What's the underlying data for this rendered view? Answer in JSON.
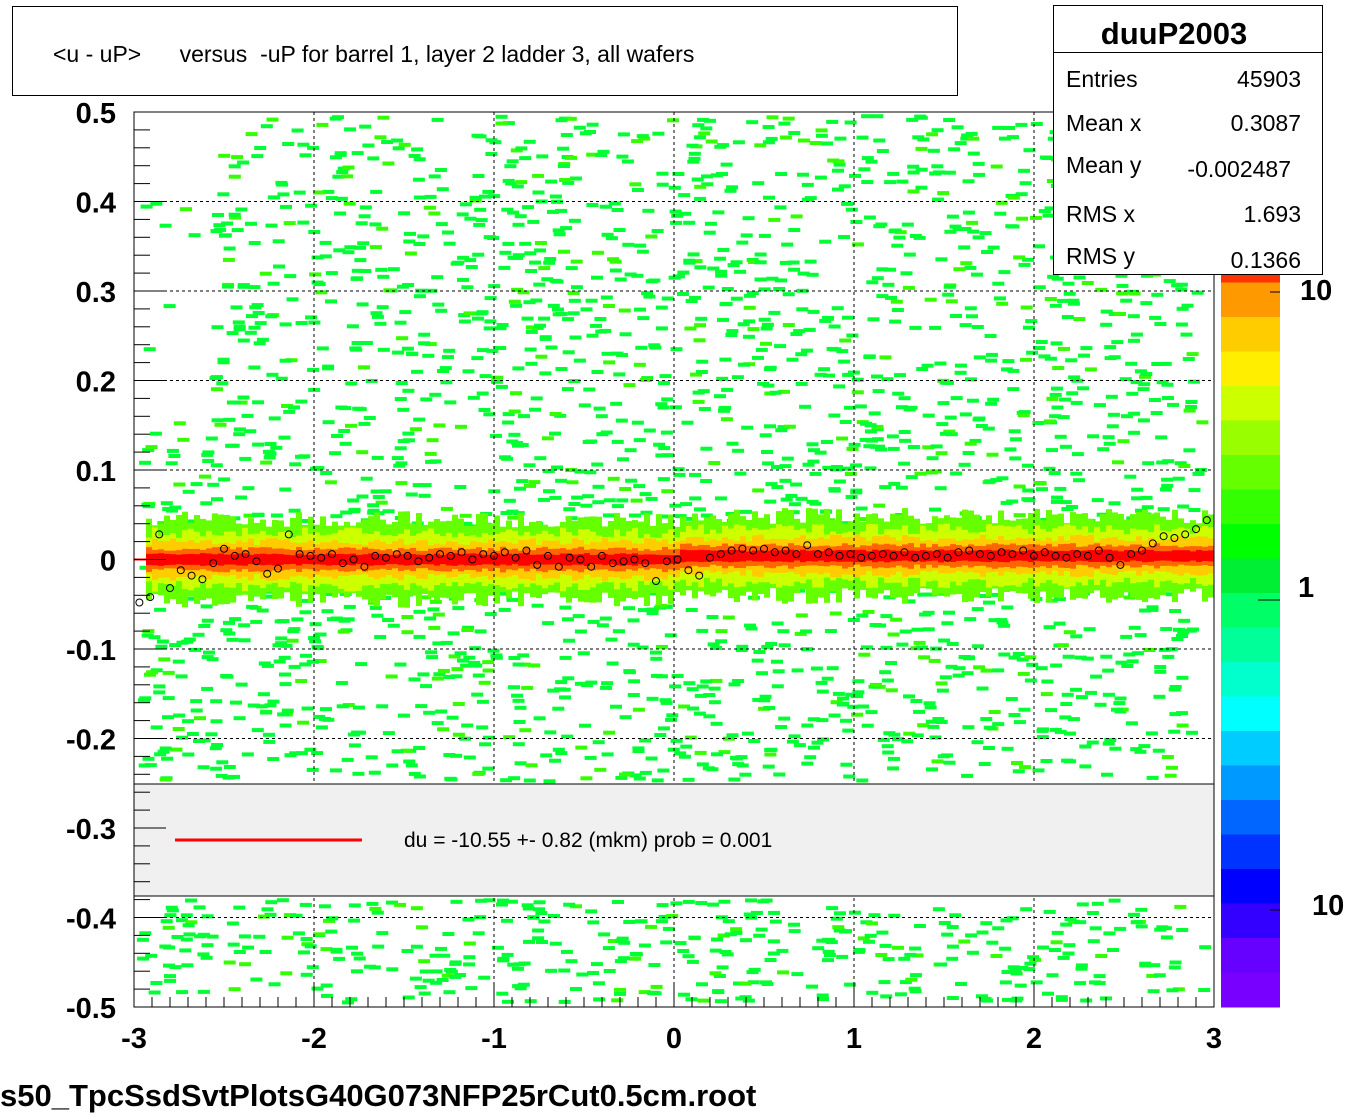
{
  "title": "<u - uP>      versus  -uP for barrel 1, layer 2 ladder 3, all wafers",
  "stats": {
    "name": "duuP2003",
    "rows": [
      {
        "label": "Entries",
        "value": "45903"
      },
      {
        "label": "Mean x",
        "value": "0.3087"
      },
      {
        "label": "Mean y",
        "value": "-0.002487"
      },
      {
        "label": "RMS x",
        "value": "1.693"
      },
      {
        "label": "RMS y",
        "value": "0.1366"
      }
    ]
  },
  "legend": {
    "text": "du =  -10.55 +-  0.82 (mkm) prob = 0.001",
    "line_color": "#ff0000"
  },
  "footer": "s50_TpcSsdSvtPlotsG40G073NFP25rCut0.5cm.root",
  "colors": {
    "background_fill": "#00ff33",
    "core_band": "#ff0000",
    "grid": "#000000",
    "legend_bg": "#f0f0f0"
  },
  "palette_labels": [
    "10",
    "1",
    "10"
  ],
  "chart_data": {
    "type": "heatmap",
    "xlim": [
      -3,
      3
    ],
    "ylim": [
      -0.5,
      0.5
    ],
    "x_ticks": [
      -3,
      -2,
      -1,
      0,
      1,
      2,
      3
    ],
    "x_tick_labels": [
      "-3",
      "-2",
      "-1",
      "0",
      "1",
      "2",
      "3"
    ],
    "y_ticks": [
      -0.5,
      -0.4,
      -0.3,
      -0.2,
      -0.1,
      0,
      0.1,
      0.2,
      0.3,
      0.4,
      0.5
    ],
    "y_tick_labels": [
      "-0.5",
      "-0.4",
      "-0.3",
      "-0.2",
      "-0.1",
      "0",
      "0.1",
      "0.2",
      "0.3",
      "0.4",
      "0.5"
    ],
    "grid": true,
    "log_z": true,
    "profile_points": [
      {
        "x": -2.97,
        "y": -0.048
      },
      {
        "x": -2.91,
        "y": -0.042
      },
      {
        "x": -2.86,
        "y": 0.028
      },
      {
        "x": -2.8,
        "y": -0.032
      },
      {
        "x": -2.74,
        "y": -0.012
      },
      {
        "x": -2.68,
        "y": -0.018
      },
      {
        "x": -2.62,
        "y": -0.022
      },
      {
        "x": -2.56,
        "y": -0.004
      },
      {
        "x": -2.5,
        "y": 0.012
      },
      {
        "x": -2.44,
        "y": 0.004
      },
      {
        "x": -2.38,
        "y": 0.006
      },
      {
        "x": -2.32,
        "y": -0.002
      },
      {
        "x": -2.26,
        "y": -0.016
      },
      {
        "x": -2.2,
        "y": -0.01
      },
      {
        "x": -2.14,
        "y": 0.028
      },
      {
        "x": -2.08,
        "y": 0.006
      },
      {
        "x": -2.02,
        "y": 0.004
      },
      {
        "x": -1.96,
        "y": 0.002
      },
      {
        "x": -1.9,
        "y": 0.006
      },
      {
        "x": -1.84,
        "y": -0.004
      },
      {
        "x": -1.78,
        "y": 0.0
      },
      {
        "x": -1.72,
        "y": -0.008
      },
      {
        "x": -1.66,
        "y": 0.004
      },
      {
        "x": -1.6,
        "y": 0.002
      },
      {
        "x": -1.54,
        "y": 0.006
      },
      {
        "x": -1.48,
        "y": 0.004
      },
      {
        "x": -1.42,
        "y": -0.002
      },
      {
        "x": -1.36,
        "y": 0.002
      },
      {
        "x": -1.3,
        "y": 0.006
      },
      {
        "x": -1.24,
        "y": 0.004
      },
      {
        "x": -1.18,
        "y": 0.008
      },
      {
        "x": -1.12,
        "y": 0.0
      },
      {
        "x": -1.06,
        "y": 0.006
      },
      {
        "x": -1.0,
        "y": 0.004
      },
      {
        "x": -0.94,
        "y": 0.008
      },
      {
        "x": -0.88,
        "y": 0.002
      },
      {
        "x": -0.82,
        "y": 0.01
      },
      {
        "x": -0.76,
        "y": -0.006
      },
      {
        "x": -0.7,
        "y": 0.004
      },
      {
        "x": -0.64,
        "y": -0.008
      },
      {
        "x": -0.58,
        "y": 0.002
      },
      {
        "x": -0.52,
        "y": 0.0
      },
      {
        "x": -0.46,
        "y": -0.008
      },
      {
        "x": -0.4,
        "y": 0.004
      },
      {
        "x": -0.34,
        "y": -0.004
      },
      {
        "x": -0.28,
        "y": -0.002
      },
      {
        "x": -0.22,
        "y": 0.0
      },
      {
        "x": -0.16,
        "y": -0.004
      },
      {
        "x": -0.1,
        "y": -0.024
      },
      {
        "x": -0.04,
        "y": -0.002
      },
      {
        "x": 0.02,
        "y": 0.0
      },
      {
        "x": 0.08,
        "y": -0.012
      },
      {
        "x": 0.14,
        "y": -0.018
      },
      {
        "x": 0.2,
        "y": 0.002
      },
      {
        "x": 0.26,
        "y": 0.006
      },
      {
        "x": 0.32,
        "y": 0.01
      },
      {
        "x": 0.38,
        "y": 0.012
      },
      {
        "x": 0.44,
        "y": 0.01
      },
      {
        "x": 0.5,
        "y": 0.012
      },
      {
        "x": 0.56,
        "y": 0.008
      },
      {
        "x": 0.62,
        "y": 0.01
      },
      {
        "x": 0.68,
        "y": 0.006
      },
      {
        "x": 0.74,
        "y": 0.016
      },
      {
        "x": 0.8,
        "y": 0.006
      },
      {
        "x": 0.86,
        "y": 0.008
      },
      {
        "x": 0.92,
        "y": 0.004
      },
      {
        "x": 0.98,
        "y": 0.006
      },
      {
        "x": 1.04,
        "y": 0.002
      },
      {
        "x": 1.1,
        "y": 0.004
      },
      {
        "x": 1.16,
        "y": 0.006
      },
      {
        "x": 1.22,
        "y": 0.004
      },
      {
        "x": 1.28,
        "y": 0.008
      },
      {
        "x": 1.34,
        "y": 0.002
      },
      {
        "x": 1.4,
        "y": 0.004
      },
      {
        "x": 1.46,
        "y": 0.006
      },
      {
        "x": 1.52,
        "y": 0.002
      },
      {
        "x": 1.58,
        "y": 0.008
      },
      {
        "x": 1.64,
        "y": 0.01
      },
      {
        "x": 1.7,
        "y": 0.006
      },
      {
        "x": 1.76,
        "y": 0.004
      },
      {
        "x": 1.82,
        "y": 0.008
      },
      {
        "x": 1.88,
        "y": 0.006
      },
      {
        "x": 1.94,
        "y": 0.01
      },
      {
        "x": 2.0,
        "y": 0.004
      },
      {
        "x": 2.06,
        "y": 0.008
      },
      {
        "x": 2.12,
        "y": 0.004
      },
      {
        "x": 2.18,
        "y": 0.002
      },
      {
        "x": 2.24,
        "y": 0.006
      },
      {
        "x": 2.3,
        "y": 0.004
      },
      {
        "x": 2.36,
        "y": 0.01
      },
      {
        "x": 2.42,
        "y": 0.002
      },
      {
        "x": 2.48,
        "y": -0.006
      },
      {
        "x": 2.54,
        "y": 0.006
      },
      {
        "x": 2.6,
        "y": 0.01
      },
      {
        "x": 2.66,
        "y": 0.018
      },
      {
        "x": 2.72,
        "y": 0.026
      },
      {
        "x": 2.78,
        "y": 0.024
      },
      {
        "x": 2.84,
        "y": 0.028
      },
      {
        "x": 2.9,
        "y": 0.034
      },
      {
        "x": 2.96,
        "y": 0.044
      }
    ],
    "fit_line": {
      "x": [
        -3,
        3
      ],
      "y": [
        -1.055e-05,
        -1.055e-05
      ],
      "color": "#ff0000"
    }
  }
}
